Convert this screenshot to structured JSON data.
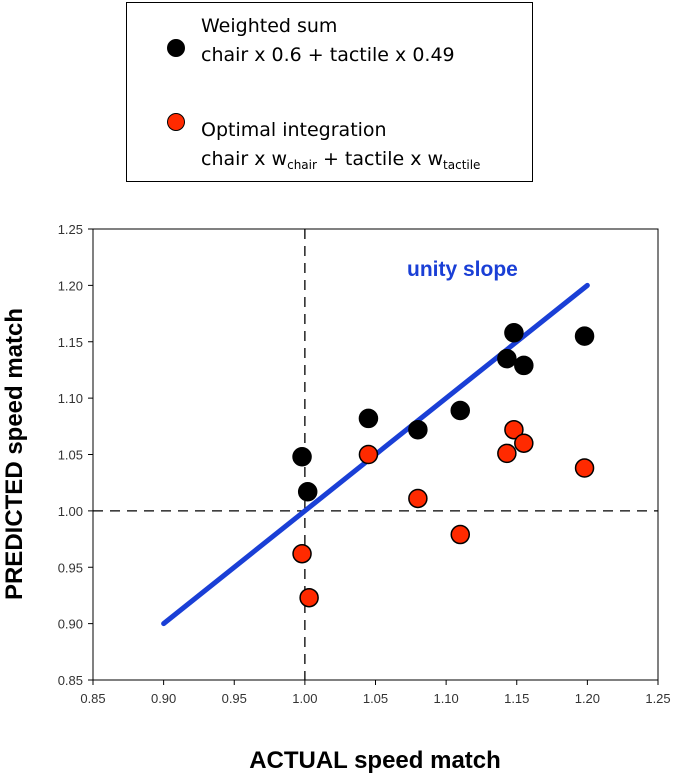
{
  "legend": {
    "items": [
      {
        "name": "weighted-sum",
        "line1": "Weighted sum",
        "line2": "chair x 0.6 + tactile x 0.49",
        "color": "#000000"
      },
      {
        "name": "optimal-integration",
        "line1": "Optimal integration",
        "line2_a": "chair x w",
        "line2_sub1": "chair",
        "line2_b": " + tactile x w",
        "line2_sub2": "tactile",
        "color": "#ff2a00"
      }
    ]
  },
  "chart_data": {
    "type": "scatter",
    "xlabel": "ACTUAL speed match",
    "ylabel": "PREDICTED speed match",
    "xlim": [
      0.85,
      1.25
    ],
    "ylim": [
      0.85,
      1.25
    ],
    "xticks": [
      "0.85",
      "0.90",
      "0.95",
      "1.00",
      "1.05",
      "1.10",
      "1.15",
      "1.20",
      "1.25"
    ],
    "yticks": [
      "0.85",
      "0.90",
      "0.95",
      "1.00",
      "1.05",
      "1.10",
      "1.15",
      "1.20",
      "1.25"
    ],
    "reference_lines": {
      "x": 1.0,
      "y": 1.0,
      "style": "dashed"
    },
    "unity_line": {
      "label": "unity slope",
      "from": [
        0.9,
        0.9
      ],
      "to": [
        1.2,
        1.2
      ],
      "color": "#1a3fd6"
    },
    "series": [
      {
        "name": "Weighted sum",
        "color": "#000000",
        "points": [
          [
            0.998,
            1.048
          ],
          [
            1.002,
            1.017
          ],
          [
            1.045,
            1.082
          ],
          [
            1.08,
            1.072
          ],
          [
            1.11,
            1.089
          ],
          [
            1.143,
            1.135
          ],
          [
            1.148,
            1.158
          ],
          [
            1.155,
            1.129
          ],
          [
            1.198,
            1.155
          ]
        ]
      },
      {
        "name": "Optimal integration",
        "color": "#ff2a00",
        "points": [
          [
            0.998,
            0.962
          ],
          [
            1.003,
            0.923
          ],
          [
            1.045,
            1.05
          ],
          [
            1.08,
            1.011
          ],
          [
            1.11,
            0.979
          ],
          [
            1.143,
            1.051
          ],
          [
            1.148,
            1.072
          ],
          [
            1.155,
            1.06
          ],
          [
            1.198,
            1.038
          ]
        ]
      }
    ]
  }
}
